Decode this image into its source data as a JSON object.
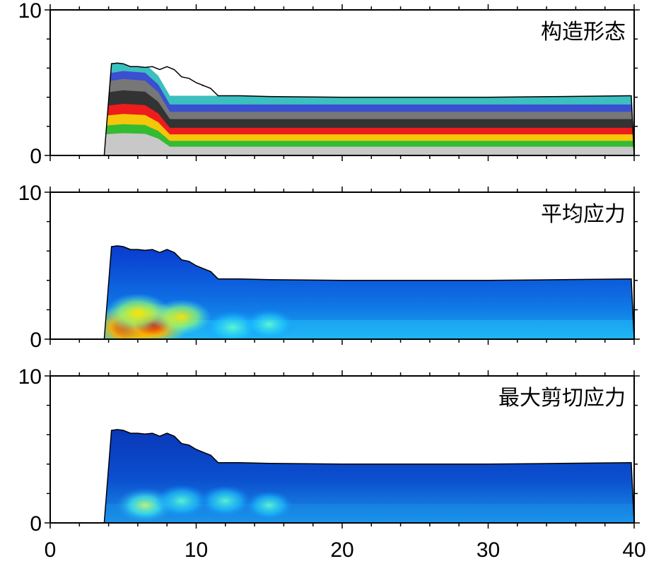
{
  "chart_data": [
    {
      "type": "area",
      "title": "构造形态",
      "xlim": [
        0,
        40
      ],
      "ylim": [
        0,
        10
      ],
      "x_ticks": [
        "0",
        "10",
        "20",
        "30",
        "40"
      ],
      "y_ticks": [
        "0",
        "10"
      ],
      "surface": {
        "x": [
          3.7,
          4.2,
          4.6,
          5.0,
          5.5,
          6.0,
          6.5,
          7.0,
          7.5,
          8.0,
          8.5,
          9.0,
          9.5,
          10.0,
          10.5,
          11.0,
          11.5,
          13,
          15,
          20,
          25,
          30,
          35,
          39.8
        ],
        "y": [
          0,
          6.3,
          6.35,
          6.3,
          6.1,
          6.1,
          6.05,
          6.1,
          5.9,
          6.1,
          5.9,
          5.4,
          5.3,
          5.0,
          4.8,
          4.6,
          4.1,
          4.1,
          4.05,
          4.0,
          4.0,
          4.0,
          4.05,
          4.1
        ]
      },
      "layers": [
        {
          "name": "gray",
          "color": "#c8c8c8",
          "top_flat": 0.6
        },
        {
          "name": "green",
          "color": "#33bb33",
          "top_flat": 1.0
        },
        {
          "name": "yellow",
          "color": "#f5c60a",
          "top_flat": 1.45
        },
        {
          "name": "red",
          "color": "#ee1c1c",
          "top_flat": 1.9
        },
        {
          "name": "black",
          "color": "#333333",
          "top_flat": 2.5
        },
        {
          "name": "gray2",
          "color": "#777777",
          "top_flat": 3.0
        },
        {
          "name": "blue",
          "color": "#3b4fd1",
          "top_flat": 3.5
        },
        {
          "name": "cyan",
          "color": "#3bbfbf",
          "top_flat": 4.1
        }
      ]
    },
    {
      "type": "heatmap",
      "title": "平均应力",
      "xlim": [
        0,
        40
      ],
      "ylim": [
        0,
        10
      ],
      "x_ticks": [
        "0",
        "10",
        "20",
        "30",
        "40"
      ],
      "y_ticks": [
        "0",
        "10"
      ],
      "colormap": "jet",
      "hotspots": [
        {
          "x": 5.5,
          "y": 0.8,
          "level": 0.95
        },
        {
          "x": 7.0,
          "y": 1.0,
          "level": 0.85
        },
        {
          "x": 6.0,
          "y": 1.8,
          "level": 0.7
        },
        {
          "x": 9.0,
          "y": 1.5,
          "level": 0.6
        },
        {
          "x": 12.5,
          "y": 0.8,
          "level": 0.55
        },
        {
          "x": 15,
          "y": 1.0,
          "level": 0.45
        }
      ]
    },
    {
      "type": "heatmap",
      "title": "最大剪切应力",
      "xlim": [
        0,
        40
      ],
      "ylim": [
        0,
        10
      ],
      "x_ticks": [
        "0",
        "10",
        "20",
        "30",
        "40"
      ],
      "y_ticks": [
        "0",
        "10"
      ],
      "colormap": "jet",
      "hotspots": [
        {
          "x": 6.5,
          "y": 1.2,
          "level": 0.6
        },
        {
          "x": 9.0,
          "y": 1.5,
          "level": 0.5
        },
        {
          "x": 12,
          "y": 1.5,
          "level": 0.45
        },
        {
          "x": 15,
          "y": 1.2,
          "level": 0.38
        }
      ]
    }
  ]
}
